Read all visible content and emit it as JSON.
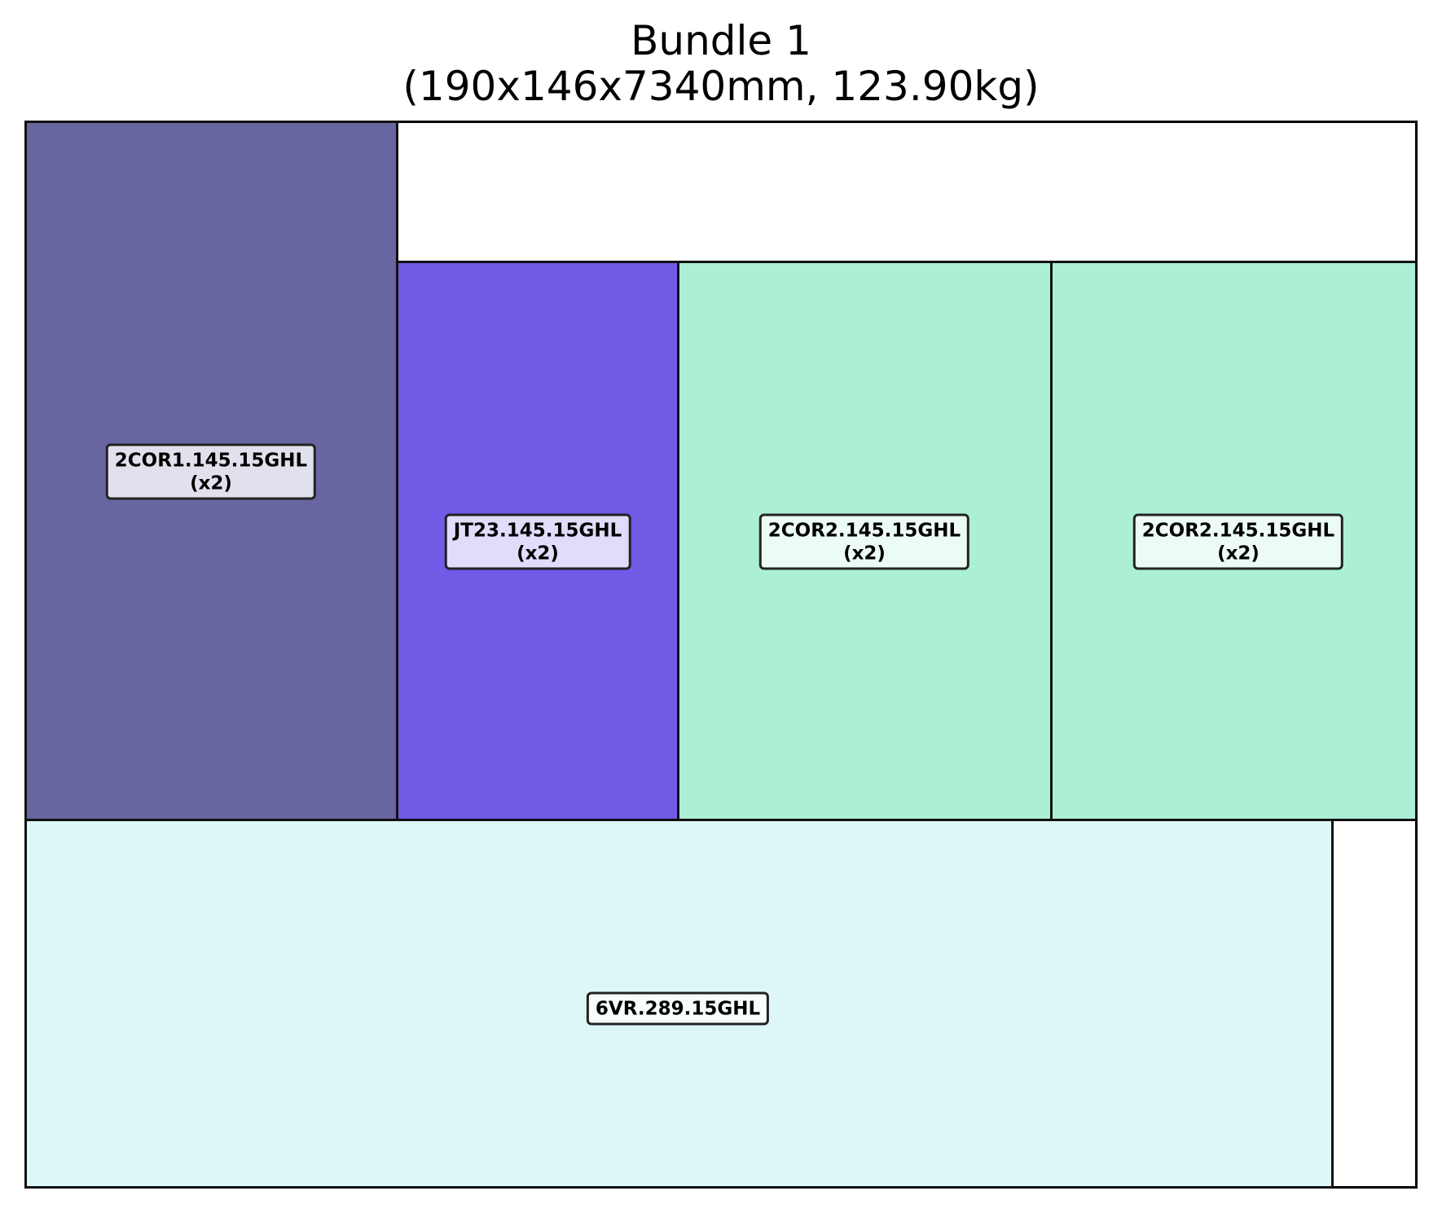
{
  "title": {
    "line1": "Bundle 1",
    "line2": "(190x146x7340mm, 123.90kg)"
  },
  "pieces": [
    {
      "name": "2COR1.145.15GHL",
      "qty": "(x2)",
      "fill": "#6866a0",
      "label_bg": "#e1e1ed"
    },
    {
      "name": "JT23.145.15GHL",
      "qty": "(x2)",
      "fill": "#7259e6",
      "label_bg": "#e2dbf9"
    },
    {
      "name": "2COR2.145.15GHL",
      "qty": "(x2)",
      "fill": "#abf0d5",
      "label_bg": "#edfbf5"
    },
    {
      "name": "2COR2.145.15GHL",
      "qty": "(x2)",
      "fill": "#abf0d5",
      "label_bg": "#edfbf5"
    },
    {
      "name": "6VR.289.15GHL",
      "qty": "",
      "fill": "#ddf7f6",
      "label_bg": "#f7fdfd"
    }
  ]
}
